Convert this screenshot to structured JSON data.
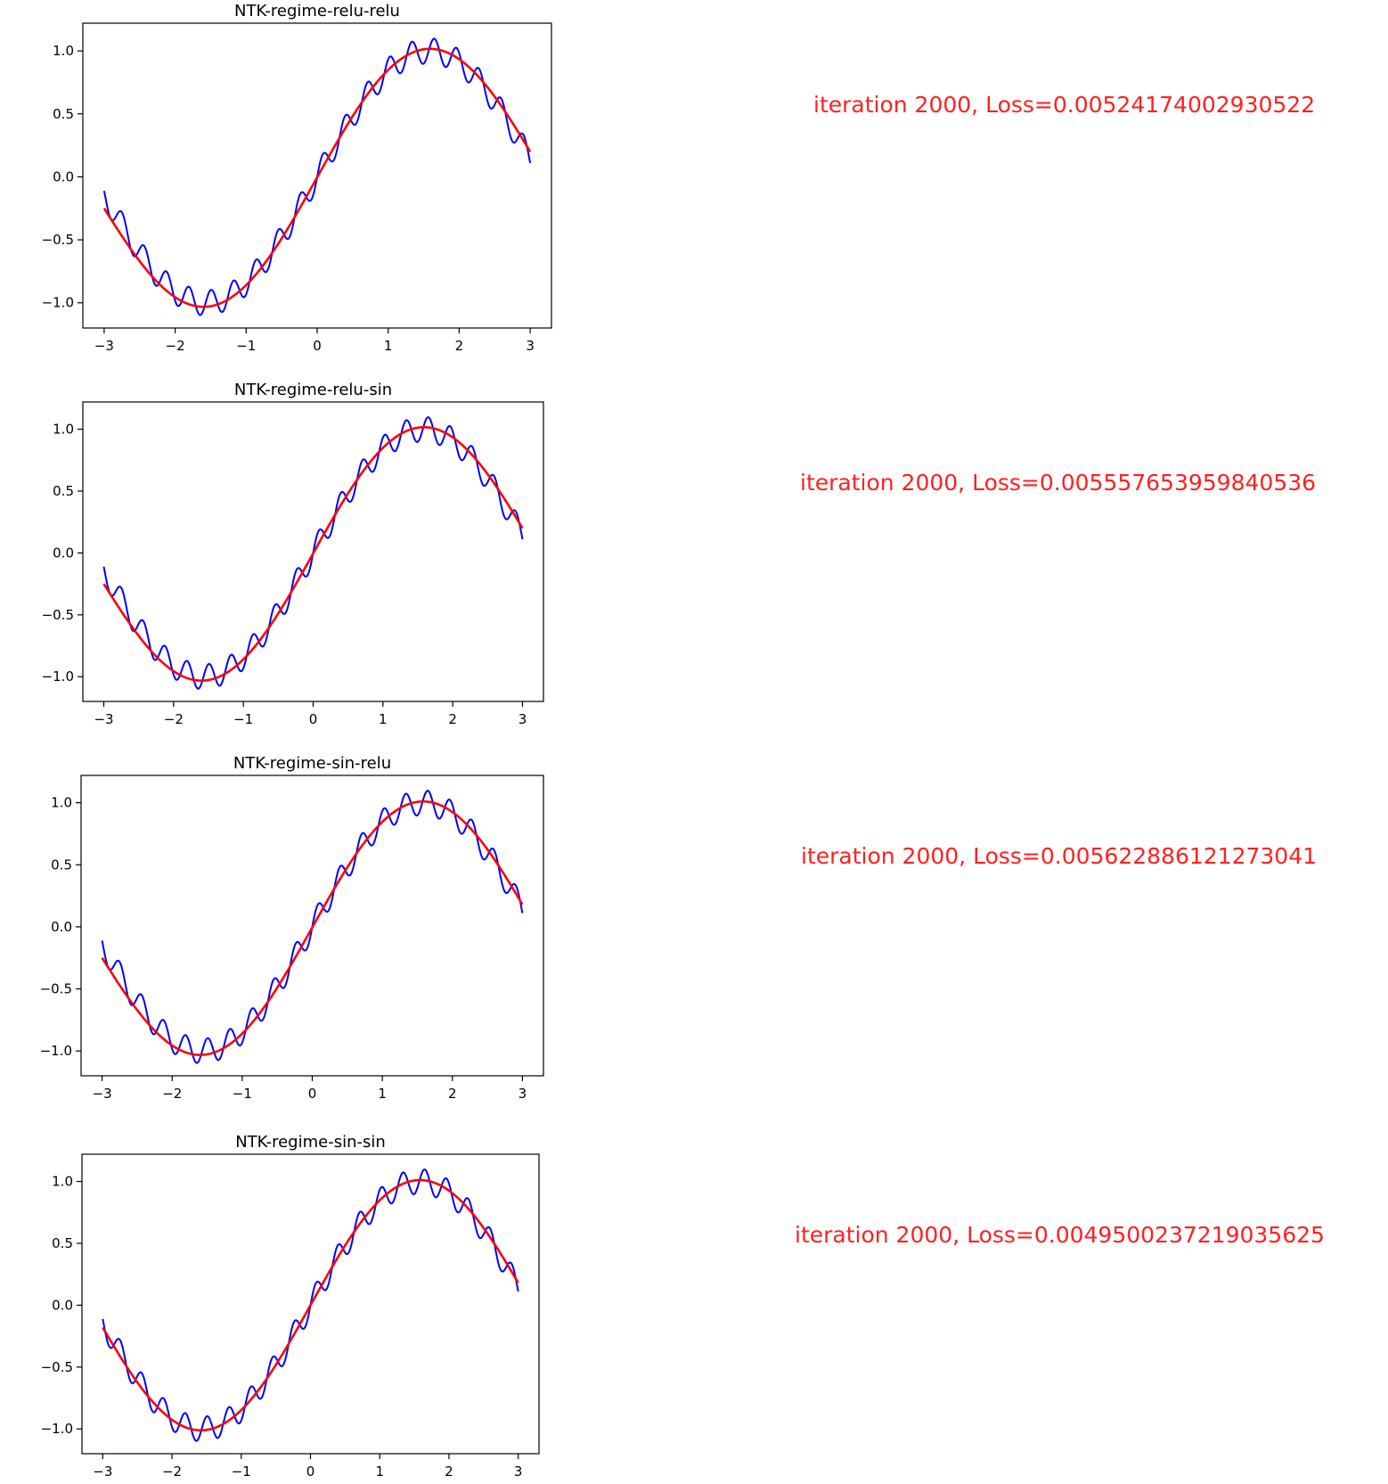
{
  "chart_data": [
    {
      "type": "line",
      "title": "NTK-regime-relu-relu",
      "xlim": [
        -3.3,
        3.3
      ],
      "ylim": [
        -1.2,
        1.22
      ],
      "xticks": [
        -3,
        -2,
        -1,
        0,
        1,
        2,
        3
      ],
      "xtick_labels": [
        "−3",
        "−2",
        "−1",
        "0",
        "1",
        "2",
        "3"
      ],
      "yticks": [
        1.0,
        0.5,
        0.0,
        -0.5,
        -1.0
      ],
      "ytick_labels": [
        "1.0",
        "0.5",
        "0.0",
        "−0.5",
        "−1.0"
      ],
      "grid": false,
      "series": [
        {
          "color": "#0000ff",
          "function": "sin(x) + 0.1*sin(20x)",
          "x_range": [
            -3,
            3
          ]
        },
        {
          "color": "#ff0000",
          "x_range": [
            -3,
            3
          ],
          "start_value": -0.25,
          "end_value": 0.2
        }
      ],
      "annotation": "iteration 2000, Loss=0.00524174002930522"
    },
    {
      "type": "line",
      "title": "NTK-regime-relu-sin",
      "xlim": [
        -3.3,
        3.3
      ],
      "ylim": [
        -1.2,
        1.22
      ],
      "xticks": [
        -3,
        -2,
        -1,
        0,
        1,
        2,
        3
      ],
      "xtick_labels": [
        "−3",
        "−2",
        "−1",
        "0",
        "1",
        "2",
        "3"
      ],
      "yticks": [
        1.0,
        0.5,
        0.0,
        -0.5,
        -1.0
      ],
      "ytick_labels": [
        "1.0",
        "0.5",
        "0.0",
        "−0.5",
        "−1.0"
      ],
      "grid": false,
      "series": [
        {
          "color": "#0000ff",
          "function": "sin(x) + 0.1*sin(20x)",
          "x_range": [
            -3,
            3
          ]
        },
        {
          "color": "#ff0000",
          "x_range": [
            -3,
            3
          ],
          "start_value": -0.25,
          "end_value": 0.2
        }
      ],
      "annotation": "iteration 2000, Loss=0.005557653959840536"
    },
    {
      "type": "line",
      "title": "NTK-regime-sin-relu",
      "xlim": [
        -3.3,
        3.3
      ],
      "ylim": [
        -1.2,
        1.22
      ],
      "xticks": [
        -3,
        -2,
        -1,
        0,
        1,
        2,
        3
      ],
      "xtick_labels": [
        "−3",
        "−2",
        "−1",
        "0",
        "1",
        "2",
        "3"
      ],
      "yticks": [
        1.0,
        0.5,
        0.0,
        -0.5,
        -1.0
      ],
      "ytick_labels": [
        "1.0",
        "0.5",
        "0.0",
        "−0.5",
        "−1.0"
      ],
      "grid": false,
      "series": [
        {
          "color": "#0000ff",
          "function": "sin(x) + 0.1*sin(20x)",
          "x_range": [
            -3,
            3
          ]
        },
        {
          "color": "#ff0000",
          "x_range": [
            -3,
            3
          ],
          "start_value": -0.25,
          "end_value": 0.18
        }
      ],
      "annotation": "iteration 2000, Loss=0.005622886121273041"
    },
    {
      "type": "line",
      "title": "NTK-regime-sin-sin",
      "xlim": [
        -3.3,
        3.3
      ],
      "ylim": [
        -1.2,
        1.22
      ],
      "xticks": [
        -3,
        -2,
        -1,
        0,
        1,
        2,
        3
      ],
      "xtick_labels": [
        "−3",
        "−2",
        "−1",
        "0",
        "1",
        "2",
        "3"
      ],
      "yticks": [
        1.0,
        0.5,
        0.0,
        -0.5,
        -1.0
      ],
      "ytick_labels": [
        "1.0",
        "0.5",
        "0.0",
        "−0.5",
        "−1.0"
      ],
      "grid": false,
      "series": [
        {
          "color": "#0000ff",
          "function": "sin(x) + 0.1*sin(20x)",
          "x_range": [
            -3,
            3
          ]
        },
        {
          "color": "#ff0000",
          "x_range": [
            -3,
            3
          ],
          "start_value": -0.18,
          "end_value": 0.18
        }
      ],
      "annotation": "iteration 2000, Loss=0.004950023721903562 5"
    }
  ],
  "colors": {
    "annotation": "#ff2020",
    "axes": "#000000",
    "background": "#ffffff"
  }
}
